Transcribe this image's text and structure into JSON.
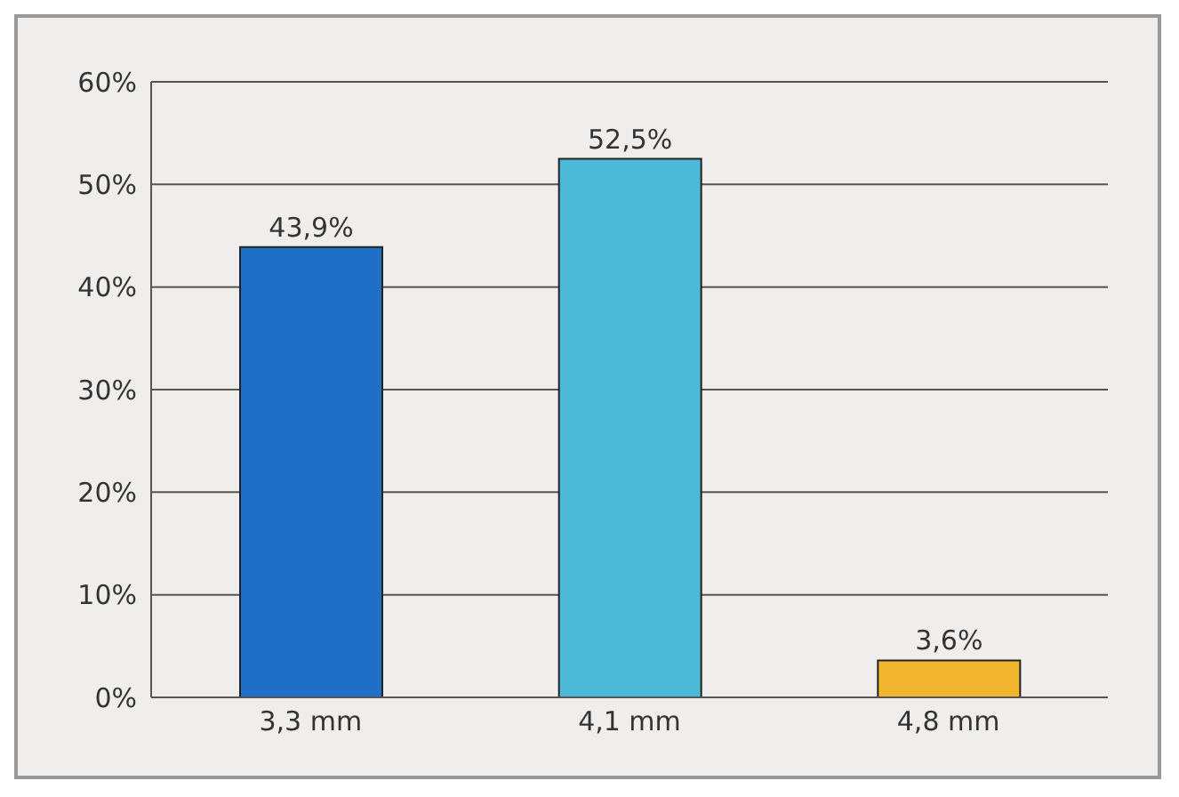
{
  "chart_data": {
    "type": "bar",
    "categories": [
      "3,3 mm",
      "4,1 mm",
      "4,8 mm"
    ],
    "values": [
      43.9,
      52.5,
      3.6
    ],
    "colors": [
      "#1f6fc6",
      "#4cb9d6",
      "#f2b52e"
    ],
    "value_labels": [
      "43,9%",
      "52,5%",
      "3,6%"
    ],
    "ylim": [
      0,
      60
    ],
    "yticks": [
      {
        "value": 0,
        "label": "0%"
      },
      {
        "value": 10,
        "label": "10%"
      },
      {
        "value": 20,
        "label": "20%"
      },
      {
        "value": 30,
        "label": "30%"
      },
      {
        "value": 40,
        "label": "40%"
      },
      {
        "value": 50,
        "label": "50%"
      },
      {
        "value": 60,
        "label": "60%"
      }
    ],
    "grid": "y",
    "legend": false
  }
}
